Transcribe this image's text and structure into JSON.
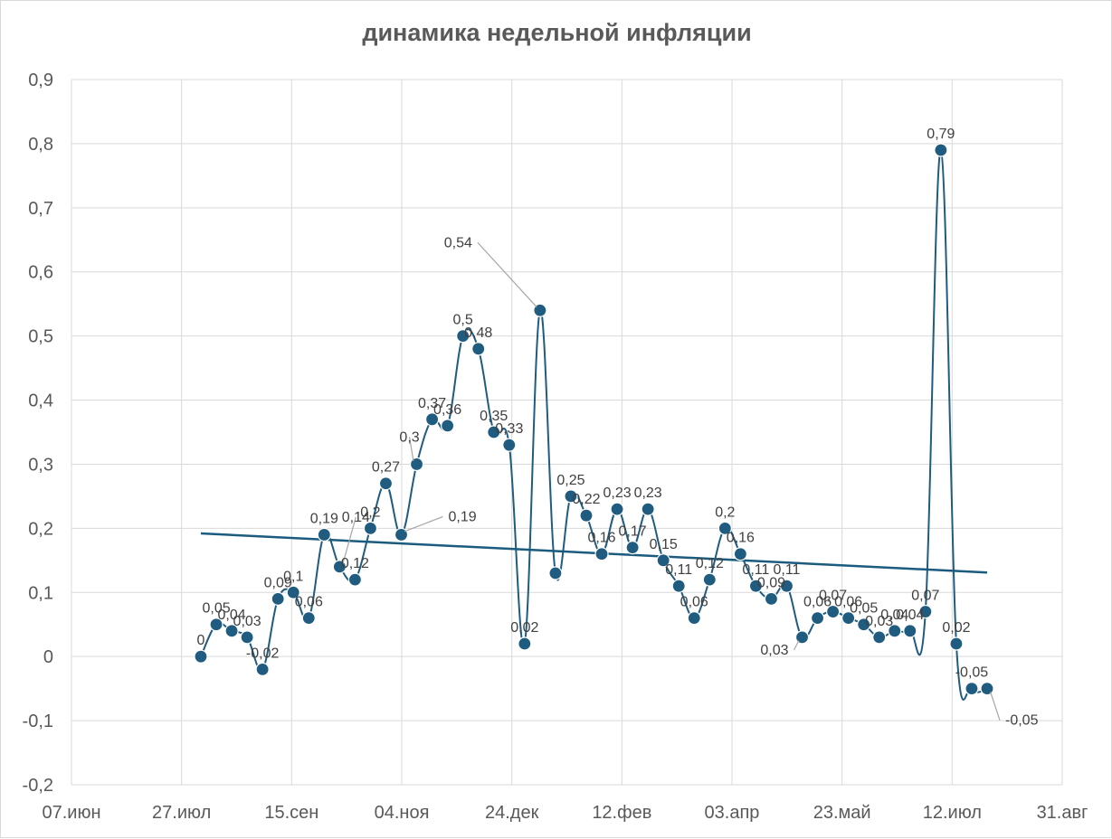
{
  "chart_data": {
    "type": "line",
    "title": "динамика недельной инфляции",
    "xlabel": "",
    "ylabel": "",
    "x_tick_labels": [
      "07.июн",
      "27.июл",
      "15.сен",
      "04.ноя",
      "24.дек",
      "12.фев",
      "03.апр",
      "23.май",
      "12.июл",
      "31.авг"
    ],
    "y_tick_labels": [
      "0,9",
      "0,8",
      "0,7",
      "0,6",
      "0,5",
      "0,4",
      "0,3",
      "0,2",
      "0,1",
      "0",
      "-0,1",
      "-0,2"
    ],
    "ylim": [
      -0.2,
      0.9
    ],
    "grid": true,
    "legend": "none",
    "series": [
      {
        "values": [
          0,
          0.05,
          0.04,
          0.03,
          -0.02,
          0.09,
          0.1,
          0.06,
          0.19,
          0.14,
          0.12,
          0.2,
          0.27,
          0.19,
          0.3,
          0.37,
          0.36,
          0.5,
          0.48,
          0.35,
          0.33,
          0.02,
          0.54,
          0.13,
          0.25,
          0.22,
          0.16,
          0.23,
          0.17,
          0.23,
          0.15,
          0.11,
          0.06,
          0.12,
          0.2,
          0.16,
          0.11,
          0.09,
          0.11,
          0.03,
          0.06,
          0.07,
          0.06,
          0.05,
          0.03,
          0.04,
          0.04,
          0.07,
          0.79,
          0.02,
          -0.05,
          -0.05
        ],
        "labels": [
          "0",
          "0,05",
          "0,04",
          "0,03",
          "-0,02",
          "0,09",
          "0,1",
          "0,06",
          "0,19",
          "0,14",
          "0,12",
          "0,2",
          "0,27",
          "0,19",
          "0,3",
          "0,37",
          "0,36",
          "0,5",
          "0,48",
          "0,35",
          "0,33",
          "0,02",
          "0,54",
          "",
          "0,25",
          "0,22",
          "0,16",
          "0,23",
          "0,17",
          "0,23",
          "0,15",
          "0,11",
          "0,06",
          "0,12",
          "0,2",
          "0,16",
          "0,11",
          "0,09",
          "0,11",
          "0,03",
          "0,06",
          "0,07",
          "0,06",
          "0,05",
          "0,03",
          "0,04",
          "0,04",
          "0,07",
          "0,79",
          "0,02",
          "-0,05",
          "-0,05"
        ]
      }
    ],
    "trendline": {
      "type": "linear",
      "start_value": 0.192,
      "end_value": 0.131
    },
    "colors": {
      "series": "#1f5c80",
      "marker": "#1f5c80",
      "trend": "#1a5b7e",
      "grid": "#d9d9d9",
      "text": "#595959",
      "leader": "#a6a6a6"
    }
  }
}
